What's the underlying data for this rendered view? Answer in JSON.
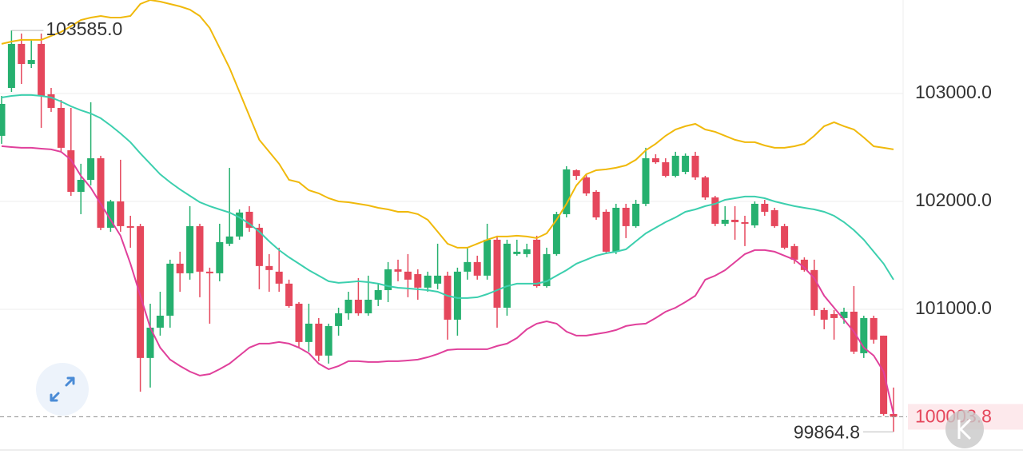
{
  "chart_data": {
    "type": "candlestick",
    "up_color": "#26b06f",
    "down_color": "#e5475c",
    "grid": true,
    "ylim": [
      99696,
      103867
    ],
    "yticks": [
      {
        "value": 101000,
        "label": "101000.0"
      },
      {
        "value": 102000,
        "label": "102000.0"
      },
      {
        "value": 103000,
        "label": "103000.0"
      }
    ],
    "open": [
      102608,
      103052,
      103460,
      103274,
      103460,
      102993,
      102867,
      102474,
      102089,
      102200,
      102400,
      101756,
      102000,
      101771,
      101771,
      100549,
      100830,
      100941,
      101423,
      101334,
      101771,
      101349,
      101334,
      101608,
      101675,
      101904,
      101756,
      101401,
      101349,
      101238,
      101052,
      100697,
      100867,
      100571,
      100845,
      100963,
      101089,
      100963,
      101089,
      101178,
      101371,
      101349,
      101326,
      101201,
      101238,
      101312,
      100904,
      101349,
      101438,
      101312,
      101645,
      101015,
      101512,
      101512,
      101645,
      101215,
      101512,
      101882,
      102289,
      102223,
      102089,
      101904,
      101534,
      101941,
      101771,
      101978,
      102400,
      102363,
      102237,
      102274,
      102423,
      102223,
      102037,
      101793,
      101830,
      101808,
      101778,
      101978,
      101919,
      101771,
      101586,
      101460,
      101364,
      100993,
      100956,
      100919,
      100978,
      100593,
      100919,
      100756,
      100030
    ],
    "high": [
      102978,
      103585,
      103556,
      103497,
      103556,
      103052,
      102941,
      102867,
      102349,
      102919,
      102423,
      102015,
      102386,
      101867,
      101793,
      101052,
      101163,
      101460,
      101534,
      101956,
      101793,
      101386,
      101793,
      102311,
      101926,
      101956,
      101793,
      101512,
      101571,
      101275,
      101067,
      101052,
      100919,
      100867,
      101015,
      101163,
      101289,
      101312,
      101238,
      101438,
      101460,
      101512,
      101371,
      101349,
      101608,
      101349,
      101386,
      101571,
      101497,
      101793,
      101682,
      101645,
      101645,
      101608,
      101682,
      101571,
      101904,
      102326,
      102297,
      102252,
      102104,
      101926,
      101978,
      101978,
      102015,
      102497,
      102437,
      102400,
      102460,
      102445,
      102460,
      102237,
      102052,
      101956,
      101956,
      101867,
      102000,
      102015,
      101941,
      101793,
      101608,
      101482,
      101460,
      101015,
      100993,
      101015,
      101215,
      100941,
      100941,
      100756,
      100275
    ],
    "low": [
      102534,
      103015,
      103089,
      103237,
      102682,
      102830,
      102460,
      102052,
      101882,
      102149,
      101734,
      101719,
      101719,
      101571,
      100237,
      100275,
      100756,
      100830,
      101163,
      101275,
      101112,
      100867,
      101260,
      101586,
      101645,
      101719,
      101186,
      101163,
      101163,
      101015,
      100645,
      100608,
      100519,
      100497,
      100756,
      100904,
      100941,
      100941,
      101030,
      101067,
      101260,
      101112,
      101089,
      101163,
      101186,
      100719,
      100756,
      101275,
      101275,
      101275,
      100830,
      100941,
      101497,
      101482,
      101201,
      101201,
      101497,
      101852,
      102200,
      102052,
      101830,
      101512,
      101512,
      101660,
      101756,
      101956,
      102349,
      102223,
      102223,
      102252,
      102200,
      102015,
      101771,
      101771,
      101645,
      101586,
      101756,
      101867,
      101756,
      101556,
      101423,
      101349,
      100941,
      100815,
      100719,
      100867,
      100586,
      100549,
      100682,
      100015,
      99864.8
    ],
    "close": [
      102904,
      103460,
      103274,
      103311,
      102978,
      102867,
      102497,
      102089,
      102200,
      102400,
      101756,
      102000,
      101771,
      101756,
      100549,
      100830,
      100941,
      101423,
      101334,
      101771,
      101349,
      101334,
      101623,
      101675,
      101897,
      101756,
      101401,
      101364,
      101238,
      101030,
      100697,
      100867,
      100571,
      100845,
      100963,
      101089,
      100963,
      101089,
      101178,
      101371,
      101349,
      101275,
      101201,
      101312,
      101312,
      100904,
      101349,
      101438,
      101312,
      101645,
      101015,
      101608,
      101534,
      101556,
      101215,
      101512,
      101882,
      102297,
      102237,
      102074,
      101852,
      101534,
      101941,
      101771,
      101978,
      102400,
      102363,
      102237,
      102423,
      102423,
      102223,
      102037,
      101793,
      101830,
      101808,
      101793,
      101978,
      101904,
      101771,
      101571,
      101460,
      101364,
      100993,
      100904,
      100919,
      100978,
      100608,
      100919,
      100719,
      100030,
      100003.8
    ],
    "bands": [
      {
        "color": "#f0b90b",
        "values": [
          103460,
          103482,
          103497,
          103497,
          103497,
          103534,
          103571,
          103623,
          103682,
          103704,
          103719,
          103704,
          103704,
          103719,
          103830,
          103867,
          103852,
          103830,
          103808,
          103778,
          103719,
          103608,
          103423,
          103237,
          103015,
          102793,
          102571,
          102460,
          102349,
          102200,
          102178,
          102104,
          102075,
          102030,
          102000,
          101993,
          101978,
          101963,
          101941,
          101926,
          101904,
          101904,
          101882,
          101830,
          101719,
          101608,
          101571,
          101571,
          101608,
          101645,
          101675,
          101675,
          101682,
          101675,
          101660,
          101704,
          101830,
          101978,
          102149,
          102252,
          102289,
          102297,
          102312,
          102334,
          102386,
          102474,
          102534,
          102608,
          102667,
          102697,
          102719,
          102667,
          102645,
          102608,
          102571,
          102549,
          102549,
          102519,
          102497,
          102497,
          102511,
          102534,
          102608,
          102697,
          102734,
          102697,
          102667,
          102593,
          102511,
          102497,
          102482
        ]
      },
      {
        "color": "#3ccfae",
        "values": [
          102963,
          102978,
          102986,
          102986,
          102978,
          102963,
          102926,
          102882,
          102845,
          102815,
          102771,
          102704,
          102630,
          102549,
          102445,
          102349,
          102252,
          102178,
          102112,
          102052,
          101993,
          101956,
          101926,
          101897,
          101852,
          101793,
          101719,
          101630,
          101549,
          101482,
          101423,
          101363,
          101312,
          101260,
          101245,
          101252,
          101260,
          101252,
          101238,
          101215,
          101200,
          101193,
          101186,
          101178,
          101163,
          101126,
          101104,
          101104,
          101112,
          101141,
          101178,
          101215,
          101238,
          101238,
          101238,
          101260,
          101312,
          101363,
          101423,
          101460,
          101497,
          101519,
          101534,
          101556,
          101630,
          101704,
          101756,
          101808,
          101852,
          101904,
          101926,
          101956,
          101978,
          102015,
          102030,
          102045,
          102045,
          102030,
          102000,
          101978,
          101956,
          101941,
          101926,
          101904,
          101867,
          101808,
          101734,
          101645,
          101534,
          101423,
          101275
        ]
      },
      {
        "color": "#e0409b",
        "values": [
          102512,
          102504,
          102497,
          102497,
          102489,
          102482,
          102460,
          102386,
          102237,
          102126,
          101978,
          101830,
          101682,
          101423,
          101126,
          100830,
          100645,
          100534,
          100475,
          100423,
          100386,
          100400,
          100445,
          100497,
          100571,
          100645,
          100682,
          100682,
          100697,
          100682,
          100645,
          100593,
          100497,
          100445,
          100475,
          100519,
          100519,
          100512,
          100512,
          100519,
          100519,
          100526,
          100534,
          100556,
          100586,
          100623,
          100630,
          100630,
          100630,
          100630,
          100660,
          100682,
          100734,
          100815,
          100867,
          100889,
          100867,
          100793,
          100756,
          100756,
          100771,
          100786,
          100808,
          100845,
          100860,
          100867,
          100919,
          100978,
          101015,
          101067,
          101126,
          101275,
          101312,
          101363,
          101437,
          101512,
          101549,
          101549,
          101534,
          101497,
          101460,
          101386,
          101289,
          101126,
          101015,
          100904,
          100793,
          100645,
          100571,
          100423,
          100030
        ]
      }
    ],
    "max_marker": {
      "value": 103585,
      "label": "103585.0"
    },
    "min_marker": {
      "value": 99864.8,
      "label": "99864.8"
    },
    "last_price": {
      "value": 100003.8,
      "label": "100003.8",
      "color": "#e5475c"
    }
  }
}
